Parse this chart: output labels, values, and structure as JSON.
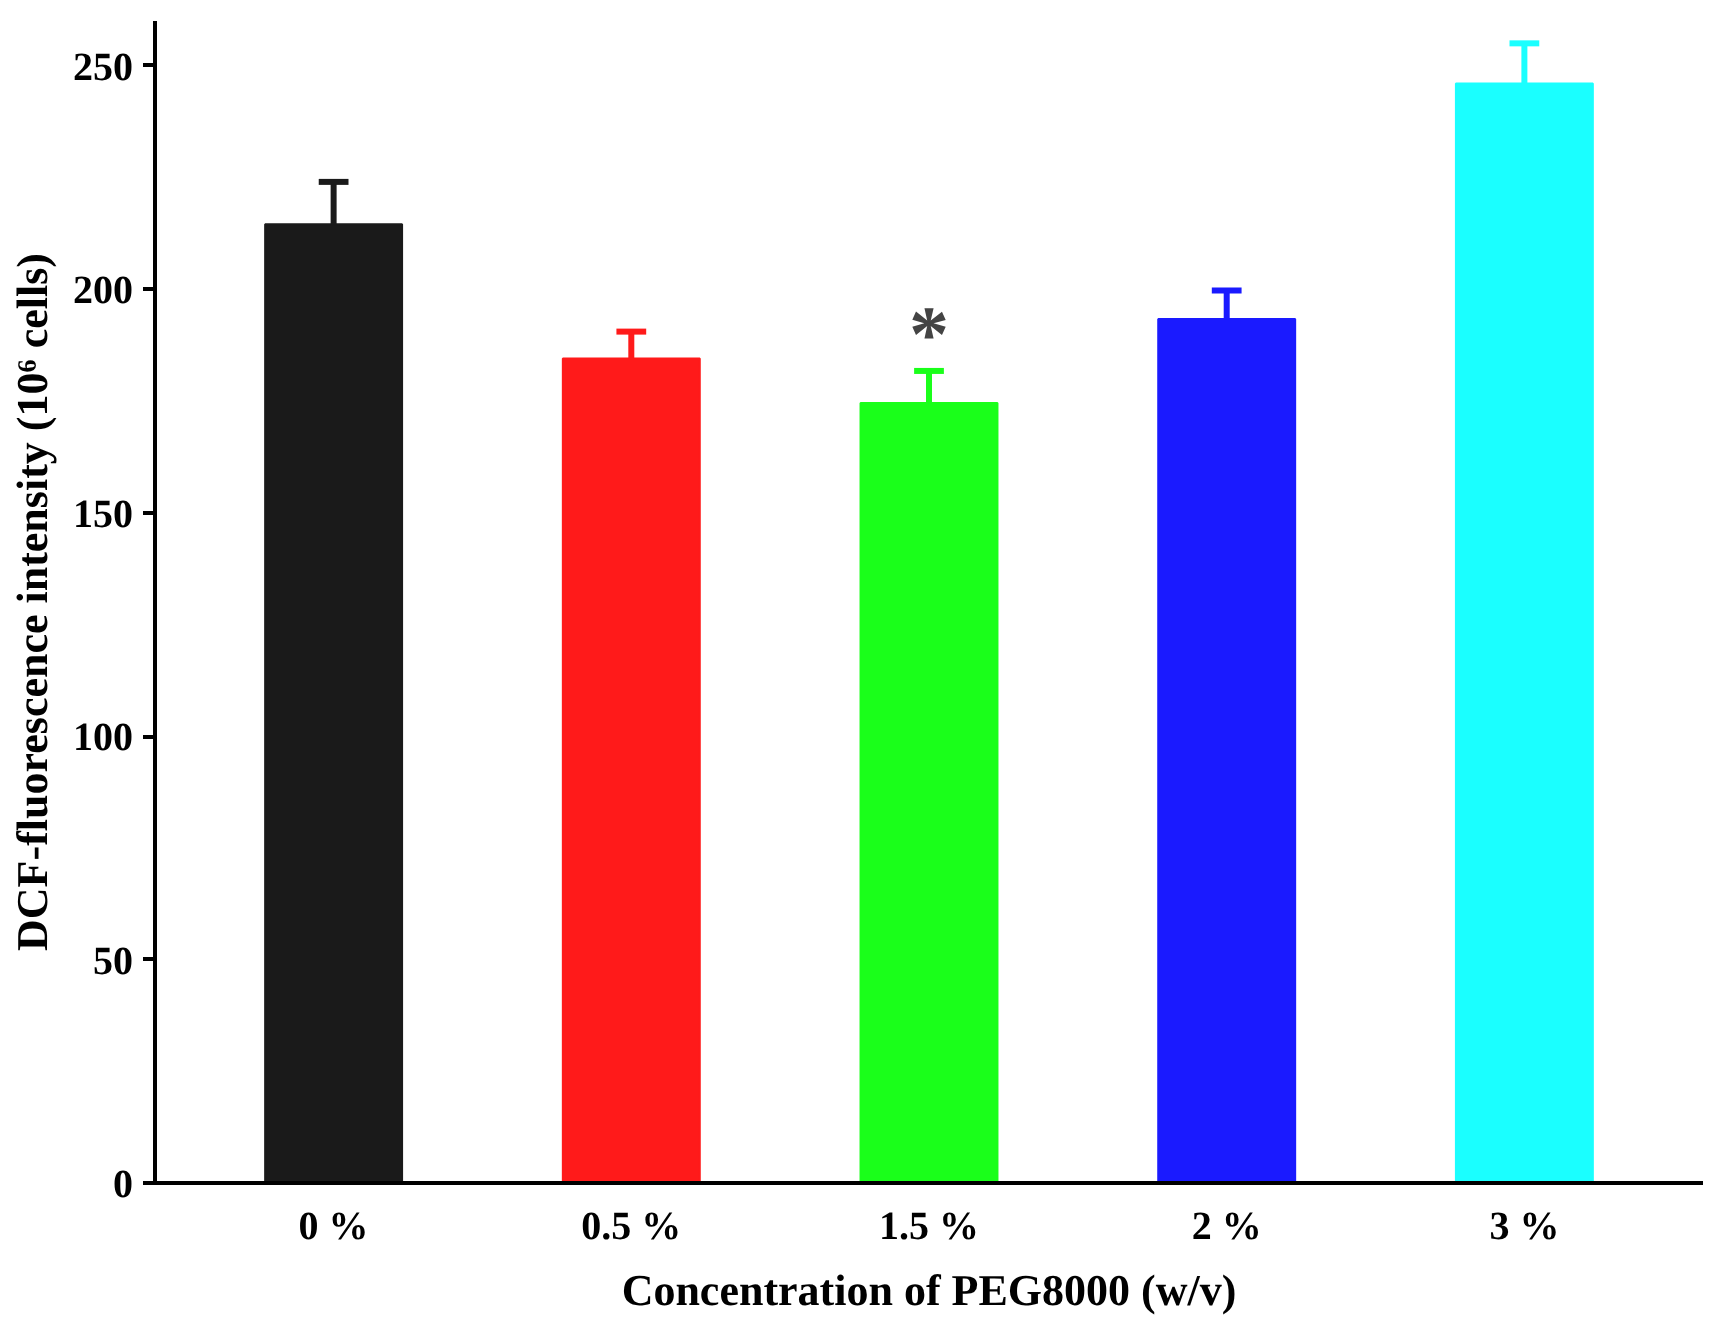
{
  "chart_data": {
    "type": "bar",
    "xlabel": "Concentration of PEG8000 (w/v)",
    "ylabel": "DCF-fluorescence intensity (10⁶ cells)",
    "categories": [
      "0 %",
      "0.5 %",
      "1.5 %",
      "2 %",
      "3 %"
    ],
    "values": [
      214.5,
      184.5,
      174.5,
      193.3,
      246
    ],
    "colors": [
      "#1a1a1a",
      "#ff1a1a",
      "#1aff1a",
      "#1a1aff",
      "#1affff"
    ],
    "errors": [
      [
        214.5,
        224
      ],
      [
        184.5,
        190.5
      ],
      [
        174.5,
        181.7
      ],
      [
        193.3,
        199.7
      ],
      [
        246,
        255
      ]
    ],
    "annotations": [
      {
        "text": "*",
        "x": "1.5 %",
        "y": 181.7
      }
    ],
    "ylim": [
      0,
      260
    ],
    "yticks": [
      0,
      50,
      100,
      150,
      200,
      250
    ],
    "grid": false
  }
}
